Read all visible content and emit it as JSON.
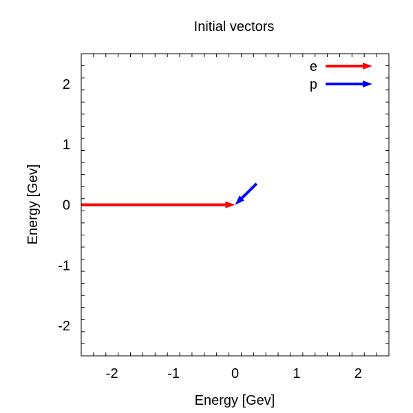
{
  "chart_data": {
    "type": "vector",
    "title": "Initial vectors",
    "xlabel": "Energy [Gev]",
    "ylabel": "Energy [Gev]",
    "xlim": [
      -2.5,
      2.5
    ],
    "ylim": [
      -2.5,
      2.5
    ],
    "xticks": [
      -2,
      -1,
      0,
      1,
      2
    ],
    "yticks": [
      -2,
      -1,
      0,
      1,
      2
    ],
    "minor_ticks_per_major": 5,
    "grid": false,
    "legend_position": "top-right",
    "series": [
      {
        "name": "e",
        "color": "#ff0000",
        "from": [
          -2.5,
          0.0
        ],
        "to": [
          0.0,
          0.0
        ]
      },
      {
        "name": "p",
        "color": "#0000ff",
        "from": [
          0.35,
          0.35
        ],
        "to": [
          0.0,
          0.0
        ]
      }
    ]
  }
}
